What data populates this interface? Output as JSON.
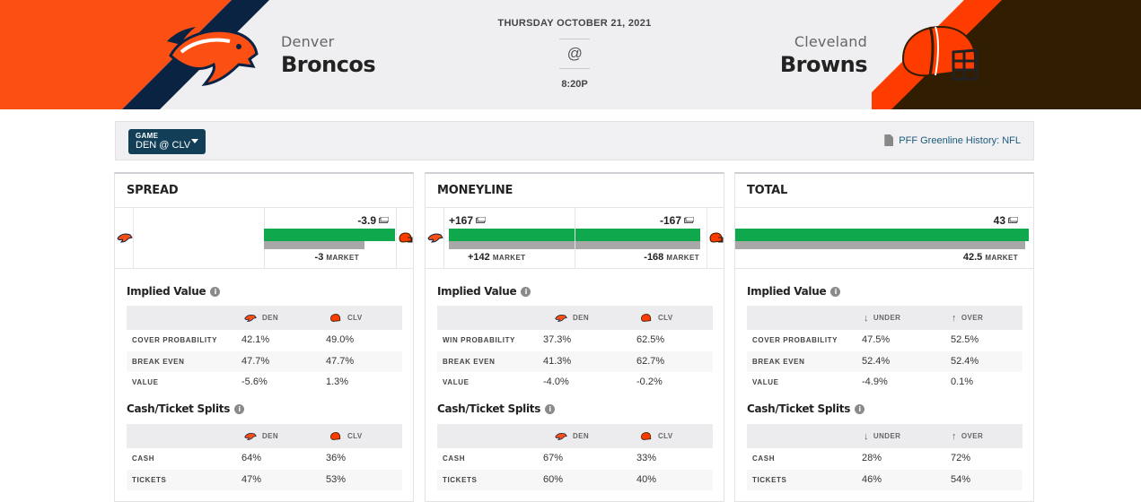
{
  "header": {
    "away": {
      "city": "Denver",
      "name": "Broncos",
      "abbr": "DEN",
      "color": "#fb4f14",
      "secondary": "#0a2343"
    },
    "home": {
      "city": "Cleveland",
      "name": "Browns",
      "abbr": "CLV",
      "color": "#ff3c00",
      "secondary": "#311d00"
    },
    "date": "THURSDAY OCTOBER 21, 2021",
    "at": "@",
    "time": "8:20P"
  },
  "toolbar": {
    "game_label": "GAME",
    "game_value": "DEN @ CLV",
    "history_link": "PFF Greenline History: NFL"
  },
  "icons": {
    "cash": "cash-icon",
    "info": "info-icon",
    "document": "document-icon",
    "dropdown": "caret-down-icon"
  },
  "panels": {
    "spread": {
      "title": "SPREAD",
      "pff_value": "-3.9",
      "pff_fill": 1.0,
      "market_value": "-3",
      "market_fill": 0.77,
      "market_label": "MARKET",
      "implied": {
        "title": "Implied Value",
        "col1": "DEN",
        "col2": "CLV",
        "rows": [
          {
            "label": "COVER PROBABILITY",
            "v1": "42.1%",
            "v2": "49.0%"
          },
          {
            "label": "BREAK EVEN",
            "v1": "47.7%",
            "v2": "47.7%"
          },
          {
            "label": "VALUE",
            "v1": "-5.6%",
            "v2": "1.3%"
          }
        ]
      },
      "splits": {
        "title": "Cash/Ticket Splits",
        "col1": "DEN",
        "col2": "CLV",
        "rows": [
          {
            "label": "CASH",
            "v1": "64%",
            "v2": "36%"
          },
          {
            "label": "TICKETS",
            "v1": "47%",
            "v2": "53%"
          }
        ]
      }
    },
    "moneyline": {
      "title": "MONEYLINE",
      "away_value": "+167",
      "away_market": "+142",
      "home_value": "-167",
      "home_market": "-168",
      "market_label": "MARKET",
      "implied": {
        "title": "Implied Value",
        "col1": "DEN",
        "col2": "CLV",
        "rows": [
          {
            "label": "WIN PROBABILITY",
            "v1": "37.3%",
            "v2": "62.5%"
          },
          {
            "label": "BREAK EVEN",
            "v1": "41.3%",
            "v2": "62.7%"
          },
          {
            "label": "VALUE",
            "v1": "-4.0%",
            "v2": "-0.2%"
          }
        ]
      },
      "splits": {
        "title": "Cash/Ticket Splits",
        "col1": "DEN",
        "col2": "CLV",
        "rows": [
          {
            "label": "CASH",
            "v1": "67%",
            "v2": "33%"
          },
          {
            "label": "TICKETS",
            "v1": "60%",
            "v2": "40%"
          }
        ]
      }
    },
    "total": {
      "title": "TOTAL",
      "pff_value": "43",
      "pff_fill": 1.0,
      "market_value": "42.5",
      "market_fill": 0.988,
      "market_label": "MARKET",
      "implied": {
        "title": "Implied Value",
        "col1": "UNDER",
        "col2": "OVER",
        "rows": [
          {
            "label": "COVER PROBABILITY",
            "v1": "47.5%",
            "v2": "52.5%"
          },
          {
            "label": "BREAK EVEN",
            "v1": "52.4%",
            "v2": "52.4%"
          },
          {
            "label": "VALUE",
            "v1": "-4.9%",
            "v2": "0.1%"
          }
        ]
      },
      "splits": {
        "title": "Cash/Ticket Splits",
        "col1": "UNDER",
        "col2": "OVER",
        "rows": [
          {
            "label": "CASH",
            "v1": "28%",
            "v2": "72%"
          },
          {
            "label": "TICKETS",
            "v1": "46%",
            "v2": "54%"
          }
        ]
      }
    }
  }
}
